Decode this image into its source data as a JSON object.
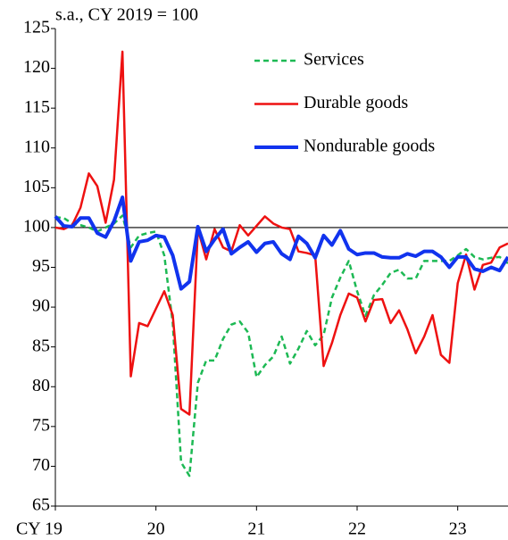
{
  "chart_data": {
    "type": "line",
    "subtitle": "s.a., CY 2019 = 100",
    "x": [
      19,
      19.083,
      19.167,
      19.25,
      19.333,
      19.417,
      19.5,
      19.583,
      19.667,
      19.75,
      19.833,
      19.917,
      20,
      20.083,
      20.167,
      20.25,
      20.333,
      20.417,
      20.5,
      20.583,
      20.667,
      20.75,
      20.833,
      20.917,
      21,
      21.083,
      21.167,
      21.25,
      21.333,
      21.417,
      21.5,
      21.583,
      21.667,
      21.75,
      21.833,
      21.917,
      22,
      22.083,
      22.167,
      22.25,
      22.333,
      22.417,
      22.5,
      22.583,
      22.667,
      22.75,
      22.833,
      22.917,
      23,
      23.083,
      23.167,
      23.25,
      23.333,
      23.417,
      23.5
    ],
    "series": [
      {
        "name": "Services",
        "color": "#1db954",
        "dashed": true,
        "line_width": 2.5,
        "values": [
          101.3,
          101.2,
          100.5,
          100.3,
          100.0,
          99.5,
          100.0,
          100.5,
          101.5,
          97.5,
          99.0,
          99.3,
          99.5,
          96.5,
          88,
          70.5,
          68.8,
          80.5,
          83.3,
          83.3,
          86,
          87.8,
          88.2,
          86.8,
          81.2,
          82.7,
          83.8,
          86.3,
          82.9,
          84.8,
          87,
          85.2,
          86.5,
          91.2,
          93.7,
          95.8,
          92,
          88.9,
          91.5,
          92.8,
          94.3,
          94.7,
          93.6,
          93.6,
          95.8,
          95.8,
          95.8,
          95.8,
          96.5,
          97.3,
          96.3,
          96,
          96.2,
          96.3,
          95.5
        ]
      },
      {
        "name": "Durable goods",
        "color": "#ee1111",
        "dashed": false,
        "line_width": 2.5,
        "values": [
          100,
          99.8,
          100.3,
          102.5,
          106.8,
          105.2,
          100.6,
          106,
          122.1,
          81.3,
          88,
          87.6,
          89.8,
          92,
          89,
          77.2,
          76.5,
          99.8,
          96,
          99.8,
          97.5,
          97,
          100.3,
          99,
          100.2,
          101.4,
          100.5,
          100,
          99.8,
          97,
          96.8,
          96.5,
          82.6,
          85.5,
          89,
          91.7,
          91.2,
          88.2,
          90.9,
          91,
          88,
          89.6,
          87.2,
          84.2,
          86.3,
          89,
          84,
          83,
          93,
          96.6,
          92.2,
          95.3,
          95.6,
          97.5,
          98
        ]
      },
      {
        "name": "Nondurable goods",
        "color": "#1133ee",
        "dashed": false,
        "line_width": 4,
        "values": [
          101.4,
          100.2,
          100.1,
          101.2,
          101.2,
          99.3,
          98.8,
          100.8,
          103.8,
          95.8,
          98.2,
          98.4,
          99,
          98.8,
          96.5,
          92.3,
          93.2,
          100.1,
          97,
          98.5,
          99.8,
          96.7,
          97.5,
          98.2,
          96.9,
          98,
          98.2,
          96.7,
          96,
          98.9,
          98,
          96.2,
          99,
          97.8,
          99.6,
          97.3,
          96.6,
          96.8,
          96.8,
          96.3,
          96.2,
          96.2,
          96.7,
          96.4,
          97,
          97,
          96.3,
          95,
          96.3,
          96.3,
          94.8,
          94.5,
          95,
          94.6,
          96.3
        ]
      }
    ],
    "xlim": [
      19,
      23.5
    ],
    "xticks": [
      {
        "value": 19,
        "label": "CY 19"
      },
      20,
      21,
      22,
      23
    ],
    "ylim": [
      65,
      125
    ],
    "yticks": [
      65,
      70,
      75,
      80,
      85,
      90,
      95,
      100,
      105,
      110,
      115,
      120,
      125
    ],
    "reference_line": 100,
    "grid": false
  }
}
